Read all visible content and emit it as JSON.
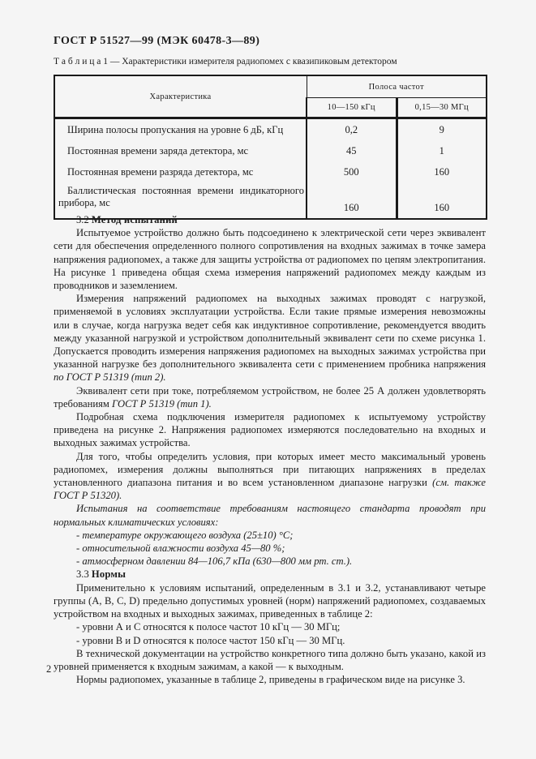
{
  "doc": {
    "header_title": "ГОСТ Р 51527—99 (МЭК 60478-3—89)",
    "page_number": "2"
  },
  "colors": {
    "page_bg": "#f5f5f5",
    "text": "#1c1c1c",
    "table_border": "#1a1a1a"
  },
  "table1": {
    "caption": "Т а б л и ц а   1 — Характеристики измерителя радиопомех с квазипиковым детектором",
    "col_header": "Характеристика",
    "band_header": "Полоса частот",
    "sub_headers": [
      "10—150 кГц",
      "0,15—30 МГц"
    ],
    "rows": [
      {
        "label": "Ширина полосы пропускания на уровне 6 дБ, кГц",
        "v1": "0,2",
        "v2": "9"
      },
      {
        "label": "Постоянная времени заряда детектора, мс",
        "v1": "45",
        "v2": "1"
      },
      {
        "label": "Постоянная времени разряда детектора, мс",
        "v1": "500",
        "v2": "160"
      },
      {
        "label": "Баллистическая постоянная времени индикаторного прибора, мс",
        "v1": "160",
        "v2": "160"
      }
    ]
  },
  "content": {
    "flow": [
      {
        "kind": "heading",
        "segments": [
          {
            "t": "3.2  "
          },
          {
            "t": "Метод испытаний",
            "b": true
          }
        ]
      },
      {
        "kind": "para",
        "segments": [
          {
            "t": "Испытуемое устройство должно быть подсоединено к электрической сети через эквивалент сети для обеспечения определенного полного сопротивления на входных зажимах в точке замера напряжения радиопомех, а также для защиты устройства от радиопомех по цепям электропитания. На рисунке 1 приведена общая схема измерения напряжений радиопомех между каждым из проводников и заземлением."
          }
        ]
      },
      {
        "kind": "para",
        "segments": [
          {
            "t": "Измерения напряжений радиопомех на выходных зажимах проводят с нагрузкой, применяемой в условиях эксплуатации устройства. Если такие прямые измерения невозможны или в случае, когда нагрузка ведет себя как индуктивное сопротивление, рекомендуется вводить между указанной нагрузкой и устройством дополнительный эквивалент сети по схеме рисунка 1. Допускается проводить измерения напряжения радиопомех на выходных зажимах устройства при указанной нагрузке без дополнительного эквивалента сети с применением пробника напряжения "
          },
          {
            "t": "по ГОСТ Р 51319 (тип 2).",
            "i": true
          }
        ]
      },
      {
        "kind": "para",
        "segments": [
          {
            "t": "Эквивалент сети при токе, потребляемом устройством, не более 25 А должен удовлетворять требованиям "
          },
          {
            "t": "ГОСТ Р 51319 (тип 1).",
            "i": true
          }
        ]
      },
      {
        "kind": "para",
        "segments": [
          {
            "t": "Подробная схема подключения измерителя радиопомех к испытуемому устройству приведена на рисунке 2. Напряжения радиопомех измеряются последовательно на входных и выходных зажимах устройства."
          }
        ]
      },
      {
        "kind": "para",
        "segments": [
          {
            "t": "Для того, чтобы определить условия, при которых имеет место максимальный уровень радиопомех, измерения должны выполняться при питающих напряжениях в пределах установленного диапазона питания и во всем установленном диапазоне нагрузки "
          },
          {
            "t": "(см. также ГОСТ Р 51320).",
            "i": true
          }
        ]
      },
      {
        "kind": "para",
        "segments": [
          {
            "t": "Испытания на соответствие требованиям настоящего стандарта проводят при нормальных климатических условиях:",
            "i": true
          }
        ]
      },
      {
        "kind": "list",
        "segments": [
          {
            "t": "- температуре окружающего воздуха (25±10) °С;",
            "i": true
          }
        ]
      },
      {
        "kind": "list",
        "segments": [
          {
            "t": "- относительной влажности воздуха 45—80 %;",
            "i": true
          }
        ]
      },
      {
        "kind": "list",
        "segments": [
          {
            "t": "- атмосферном давлении 84—106,7 кПа (630—800 мм рт. ст.).",
            "i": true
          }
        ]
      },
      {
        "kind": "heading",
        "segments": [
          {
            "t": "3.3  "
          },
          {
            "t": "Нормы",
            "b": true
          }
        ]
      },
      {
        "kind": "para",
        "segments": [
          {
            "t": "Применительно к условиям испытаний, определенным в 3.1 и 3.2, устанавливают четыре группы (А, В, С, D) предельно допустимых уровней (норм) напряжений радиопомех, создаваемых устройством на входных и выходных зажимах, приведенных в таблице 2:"
          }
        ]
      },
      {
        "kind": "list",
        "segments": [
          {
            "t": "- уровни А и С относятся к полосе частот 10 кГц — 30 МГц;"
          }
        ]
      },
      {
        "kind": "list",
        "segments": [
          {
            "t": "- уровни В и D относятся к полосе частот 150 кГц — 30 МГц."
          }
        ]
      },
      {
        "kind": "para",
        "segments": [
          {
            "t": "В технической документации на устройство конкретного типа  должно быть указано, какой из уровней применяется к входным зажимам, а какой — к выходным."
          }
        ]
      },
      {
        "kind": "para",
        "segments": [
          {
            "t": "Нормы радиопомех, указанные в таблице 2, приведены в графическом виде на рисунке 3."
          }
        ]
      }
    ]
  }
}
